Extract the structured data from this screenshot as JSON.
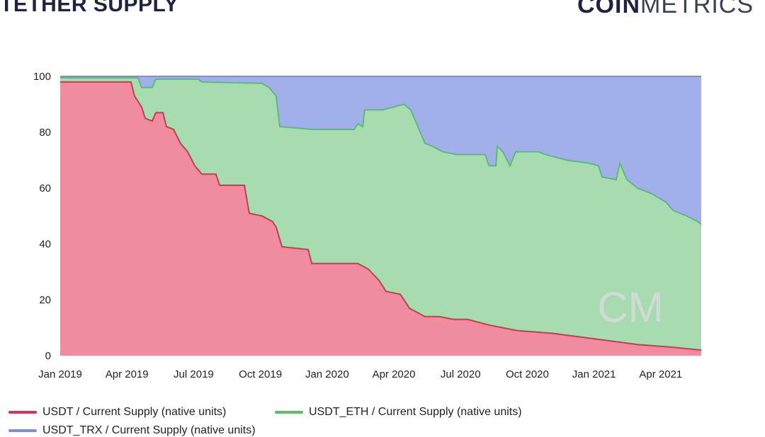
{
  "title": "TETHER SUPPLY",
  "logo": {
    "bold": "COIN",
    "light": "METRICS"
  },
  "watermark": "CM",
  "colors": {
    "usdt_line": "#e0304f",
    "usdt_fill": "#f08ca0",
    "eth_line": "#5bbf6a",
    "eth_fill": "#a8dcb0",
    "trx_line": "#7b8fe0",
    "trx_fill": "#a2b0ea"
  },
  "chart_data": {
    "type": "area",
    "stacked": true,
    "percent": true,
    "title": "TETHER SUPPLY",
    "x_unit": "months since Jan 2019",
    "xlim": [
      0,
      28.82
    ],
    "ylim": [
      0,
      100
    ],
    "yticks": [
      "0",
      "20",
      "40",
      "60",
      "80",
      "100"
    ],
    "xticks": [
      {
        "t": 0,
        "label": "Jan 2019"
      },
      {
        "t": 3,
        "label": "Apr 2019"
      },
      {
        "t": 6,
        "label": "Jul 2019"
      },
      {
        "t": 9,
        "label": "Oct 2019"
      },
      {
        "t": 12,
        "label": "Jan 2020"
      },
      {
        "t": 15,
        "label": "Apr 2020"
      },
      {
        "t": 18,
        "label": "Jul 2020"
      },
      {
        "t": 21,
        "label": "Oct 2020"
      },
      {
        "t": 24,
        "label": "Jan 2021"
      },
      {
        "t": 27,
        "label": "Apr 2021"
      }
    ],
    "legend_position": "bottom",
    "series": [
      {
        "name": "USDT / Current Supply (native units)",
        "key": "usdt",
        "cumulative": false,
        "points": [
          [
            0,
            98
          ],
          [
            3.18,
            98
          ],
          [
            3.34,
            93
          ],
          [
            3.66,
            89
          ],
          [
            3.82,
            85
          ],
          [
            4.14,
            84
          ],
          [
            4.3,
            87
          ],
          [
            4.62,
            87
          ],
          [
            4.78,
            82
          ],
          [
            5.1,
            81
          ],
          [
            5.41,
            76
          ],
          [
            5.73,
            73
          ],
          [
            6.05,
            68
          ],
          [
            6.37,
            65
          ],
          [
            7.0,
            65
          ],
          [
            7.17,
            61
          ],
          [
            8.28,
            61
          ],
          [
            8.5,
            51
          ],
          [
            9.08,
            50
          ],
          [
            9.55,
            48
          ],
          [
            9.71,
            46
          ],
          [
            9.97,
            39
          ],
          [
            11.15,
            38
          ],
          [
            11.31,
            33
          ],
          [
            13.06,
            33
          ],
          [
            13.38,
            33
          ],
          [
            13.85,
            31
          ],
          [
            14.33,
            27
          ],
          [
            14.65,
            23
          ],
          [
            15.29,
            22
          ],
          [
            15.7,
            17
          ],
          [
            16.4,
            14
          ],
          [
            17.04,
            14
          ],
          [
            17.68,
            13
          ],
          [
            18.31,
            13
          ],
          [
            19.27,
            11
          ],
          [
            20.54,
            9
          ],
          [
            22.13,
            8
          ],
          [
            24.04,
            6
          ],
          [
            25.0,
            5
          ],
          [
            25.96,
            4
          ],
          [
            27.55,
            3
          ],
          [
            28.82,
            2
          ]
        ]
      },
      {
        "name": "USDT_ETH / Current Supply (native units)",
        "key": "eth",
        "cumulative": true,
        "points": [
          [
            0,
            99.5
          ],
          [
            3.5,
            99.5
          ],
          [
            3.66,
            96
          ],
          [
            4.14,
            96
          ],
          [
            4.3,
            99
          ],
          [
            6.21,
            99
          ],
          [
            6.37,
            98
          ],
          [
            9.08,
            97.5
          ],
          [
            9.39,
            96
          ],
          [
            9.71,
            93
          ],
          [
            9.87,
            82
          ],
          [
            10.67,
            81.5
          ],
          [
            11.31,
            81
          ],
          [
            13.22,
            81
          ],
          [
            13.38,
            83
          ],
          [
            13.6,
            82
          ],
          [
            13.69,
            88
          ],
          [
            14.49,
            88
          ],
          [
            15.45,
            90
          ],
          [
            15.76,
            88
          ],
          [
            16.08,
            82
          ],
          [
            16.4,
            76
          ],
          [
            16.72,
            75
          ],
          [
            17.2,
            73
          ],
          [
            17.83,
            72
          ],
          [
            19.11,
            72
          ],
          [
            19.27,
            68
          ],
          [
            19.59,
            68
          ],
          [
            19.65,
            75
          ],
          [
            19.9,
            73
          ],
          [
            20.22,
            68
          ],
          [
            20.48,
            73
          ],
          [
            21.5,
            73
          ],
          [
            21.82,
            72
          ],
          [
            22.77,
            70
          ],
          [
            23.73,
            69
          ],
          [
            24.2,
            68
          ],
          [
            24.36,
            64
          ],
          [
            25.0,
            63
          ],
          [
            25.16,
            69
          ],
          [
            25.48,
            63
          ],
          [
            25.96,
            60
          ],
          [
            26.59,
            58
          ],
          [
            27.23,
            55
          ],
          [
            27.55,
            52
          ],
          [
            28.18,
            50
          ],
          [
            28.66,
            48
          ],
          [
            28.82,
            47
          ]
        ]
      },
      {
        "name": "USDT_TRX / Current Supply (native units)",
        "key": "trx",
        "cumulative": true,
        "points": [
          [
            0,
            100
          ],
          [
            28.82,
            100
          ]
        ]
      }
    ]
  }
}
